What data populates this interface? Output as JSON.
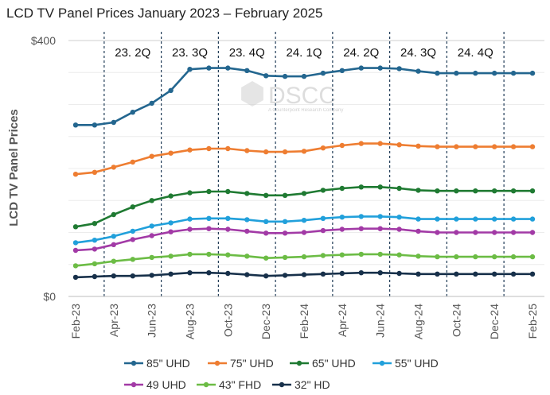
{
  "chart_data": {
    "type": "line",
    "title": "LCD TV Panel Prices January 2023 – February 2025",
    "ylabel": "LCD TV Panel Prices",
    "xlabel": "",
    "ylim": [
      0,
      400
    ],
    "yticks": [
      {
        "value": 0,
        "label": "$0"
      },
      {
        "value": 400,
        "label": "$400"
      }
    ],
    "x": [
      "Feb-23",
      "Mar-23",
      "Apr-23",
      "May-23",
      "Jun-23",
      "Jul-23",
      "Aug-23",
      "Sep-23",
      "Oct-23",
      "Nov-23",
      "Dec-23",
      "Jan-24",
      "Feb-24",
      "Mar-24",
      "Apr-24",
      "May-24",
      "Jun-24",
      "Jul-24",
      "Aug-24",
      "Sep-24",
      "Oct-24",
      "Nov-24",
      "Dec-24",
      "Jan-25",
      "Feb-25"
    ],
    "xtick_labels": [
      "Feb-23",
      "Apr-23",
      "Jun-23",
      "Aug-23",
      "Oct-23",
      "Dec-23",
      "Feb-24",
      "Apr-24",
      "Jun-24",
      "Aug-24",
      "Oct-24",
      "Dec-24",
      "Feb-25"
    ],
    "quarter_labels": [
      "23. 2Q",
      "23. 3Q",
      "23. 4Q",
      "24. 1Q",
      "24. 2Q",
      "24. 3Q",
      "24. 4Q"
    ],
    "quarter_dividers_after": [
      "Mar-23",
      "Jun-23",
      "Sep-23",
      "Dec-23",
      "Mar-24",
      "Jun-24",
      "Sep-24",
      "Dec-24"
    ],
    "grid": "horizontal",
    "legend_position": "bottom",
    "watermark": "DSCC",
    "watermark_sub": "A Counterpoint Research Company",
    "series": [
      {
        "name": "85\" UHD",
        "color": "#23668f",
        "values": [
          268,
          268,
          272,
          288,
          302,
          322,
          355,
          357,
          357,
          353,
          345,
          344,
          344,
          349,
          353,
          357,
          357,
          356,
          352,
          349,
          349,
          349,
          349,
          349,
          349
        ]
      },
      {
        "name": "75\" UHD",
        "color": "#ee7d31",
        "values": [
          191,
          194,
          202,
          210,
          219,
          224,
          229,
          231,
          231,
          228,
          226,
          226,
          227,
          232,
          236,
          239,
          239,
          237,
          235,
          234,
          234,
          234,
          234,
          234,
          234
        ]
      },
      {
        "name": "65\" UHD",
        "color": "#1f7a32",
        "values": [
          109,
          114,
          128,
          140,
          150,
          157,
          162,
          164,
          164,
          161,
          158,
          158,
          161,
          166,
          169,
          171,
          171,
          169,
          166,
          165,
          165,
          165,
          165,
          165,
          165
        ]
      },
      {
        "name": "55\" UHD",
        "color": "#21a0db",
        "values": [
          84,
          88,
          94,
          102,
          110,
          115,
          121,
          122,
          122,
          120,
          117,
          117,
          119,
          122,
          124,
          125,
          125,
          124,
          121,
          121,
          121,
          121,
          121,
          121,
          121
        ]
      },
      {
        "name": "49 UHD",
        "color": "#a23aa6",
        "values": [
          72,
          74,
          81,
          89,
          95,
          101,
          105,
          106,
          105,
          102,
          99,
          99,
          100,
          103,
          105,
          106,
          106,
          105,
          102,
          100,
          100,
          100,
          100,
          100,
          100
        ]
      },
      {
        "name": "43\" FHD",
        "color": "#6cbc45",
        "values": [
          48,
          51,
          55,
          58,
          61,
          63,
          66,
          66,
          65,
          63,
          60,
          61,
          62,
          64,
          65,
          66,
          66,
          65,
          63,
          62,
          62,
          62,
          62,
          62,
          62
        ]
      },
      {
        "name": "32\" HD",
        "color": "#17304a",
        "values": [
          30,
          31,
          32,
          32,
          33,
          35,
          37,
          37,
          36,
          34,
          32,
          33,
          34,
          35,
          36,
          37,
          37,
          36,
          35,
          35,
          35,
          35,
          35,
          35,
          35
        ]
      }
    ]
  }
}
